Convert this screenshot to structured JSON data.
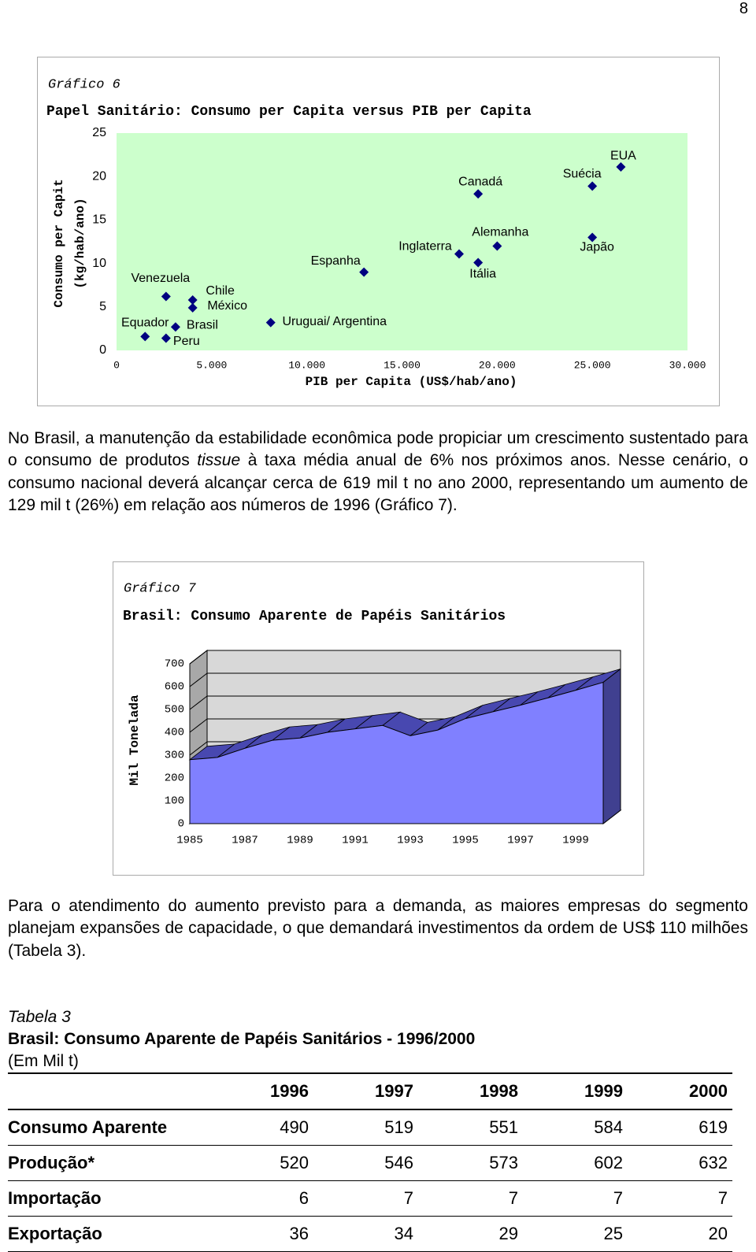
{
  "page_number": "8",
  "chart_data": [
    {
      "type": "scatter",
      "caption": "Gráfico 6",
      "title": "Papel Sanitário: Consumo per Capita versus PIB per Capita",
      "ylabel": [
        "Consumo per Capit",
        "(kg/hab/ano)"
      ],
      "xlabel": "PIB per Capita (US$/hab/ano)",
      "labels": [
        "Equador",
        "Peru",
        "Brasil",
        "Venezuela",
        "Chile",
        "México",
        "Uruguai/ Argentina",
        "Espanha",
        "Inglaterra",
        "Canadá",
        "Alemanha",
        "Itália",
        "Suécia",
        "Japão",
        "EUA"
      ],
      "x": [
        1500,
        2600,
        3100,
        2600,
        4000,
        4000,
        8100,
        13000,
        18000,
        19000,
        20000,
        19000,
        25000,
        25000,
        26500
      ],
      "values": [
        1.6,
        1.4,
        2.7,
        6.2,
        5.8,
        4.9,
        3.2,
        9.0,
        11.1,
        18.0,
        12.0,
        10.1,
        18.9,
        13.0,
        21.1
      ],
      "color": "#000080",
      "plot_background": "#ccffcc",
      "xlim": [
        0,
        30000
      ],
      "xticks": [
        0,
        {
          "value": 5000,
          "label": "5.000"
        },
        {
          "value": 10000,
          "label": "10.000"
        },
        {
          "value": 15000,
          "label": "15.000"
        },
        {
          "value": 20000,
          "label": "20.000"
        },
        {
          "value": 25000,
          "label": "25.000"
        },
        {
          "value": 30000,
          "label": "30.000"
        }
      ],
      "ylim": [
        0,
        25
      ],
      "yticks": [
        0,
        5,
        10,
        15,
        20,
        25
      ]
    },
    {
      "type": "area3d",
      "caption": "Gráfico 7",
      "title": "Brasil: Consumo Aparente de Papéis Sanitários",
      "ylabel": "Mil Tonelada",
      "categories": [
        "1985",
        null,
        "1987",
        null,
        "1989",
        null,
        "1991",
        null,
        "1993",
        null,
        "1995",
        null,
        "1997",
        null,
        "1999",
        null
      ],
      "values": [
        280,
        290,
        330,
        365,
        375,
        400,
        415,
        430,
        385,
        410,
        460,
        490,
        519,
        551,
        584,
        619
      ],
      "color": "#8080ff",
      "ylim": [
        0,
        700
      ],
      "yticks": [
        0,
        100,
        200,
        300,
        400,
        500,
        600,
        700
      ],
      "grid": true
    }
  ],
  "paragraphs": [
    [
      "No Brasil, a manutenção da estabilidade econômica pode propiciar um crescimento sustentado para o consumo de produtos ",
      "tissue",
      " à taxa média anual de 6% nos próximos anos. Nesse cenário, o consumo nacional deverá alcançar cerca de 619 mil t no ano 2000, representando um aumento de 129 mil t (26%) em relação aos números de 1996 (Gráfico 7)."
    ],
    [
      "Para o atendimento do aumento previsto para a demanda, as maiores empresas do segmento planejam expansões de capacidade, o que demandará investimentos da ordem de US$ 110 milhões (Tabela 3)."
    ]
  ],
  "table": {
    "caption": "Tabela 3",
    "title": "Brasil: Consumo Aparente de Papéis Sanitários - 1996/2000",
    "unit": "(Em Mil t)",
    "columns": [
      "1996",
      "1997",
      "1998",
      "1999",
      "2000"
    ],
    "rows": [
      {
        "label": "Consumo Aparente",
        "values": [
          490,
          519,
          551,
          584,
          619
        ]
      },
      {
        "label": "Produção*",
        "values": [
          520,
          546,
          573,
          602,
          632
        ]
      },
      {
        "label": "Importação",
        "values": [
          6,
          7,
          7,
          7,
          7
        ]
      },
      {
        "label": "Exportação",
        "values": [
          36,
          34,
          29,
          25,
          20
        ]
      }
    ]
  }
}
